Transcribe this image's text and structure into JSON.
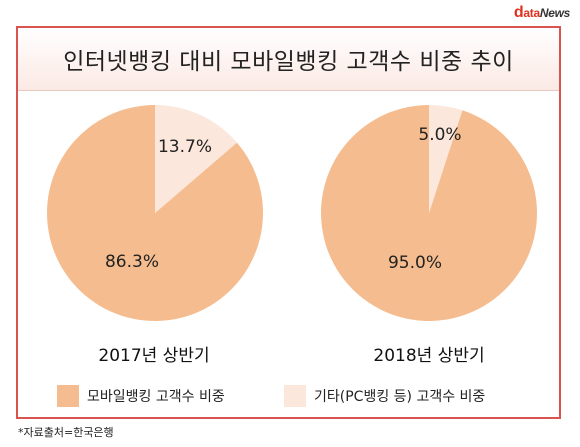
{
  "logo": {
    "d": "d",
    "ata": "ata",
    "news": "News"
  },
  "title": "인터넷뱅킹 대비 모바일뱅킹 고객수 비중 추이",
  "colors": {
    "mobile": "#f5bd8f",
    "other": "#fbe7dc",
    "border": "#d9534f"
  },
  "chart_data": [
    {
      "type": "pie",
      "title": "2017년 상반기",
      "slices": [
        {
          "label": "모바일뱅킹 고객수 비중",
          "value": 86.3,
          "display": "86.3%"
        },
        {
          "label": "기타(PC뱅킹 등) 고객수 비중",
          "value": 13.7,
          "display": "13.7%"
        }
      ]
    },
    {
      "type": "pie",
      "title": "2018년 상반기",
      "slices": [
        {
          "label": "모바일뱅킹 고객수 비중",
          "value": 95.0,
          "display": "95.0%"
        },
        {
          "label": "기타(PC뱅킹 등) 고객수 비중",
          "value": 5.0,
          "display": "5.0%"
        }
      ]
    }
  ],
  "legend": [
    {
      "label": "모바일뱅킹 고객수 비중"
    },
    {
      "label": "기타(PC뱅킹 등) 고객수 비중"
    }
  ],
  "source": "*자료출처=한국은행"
}
